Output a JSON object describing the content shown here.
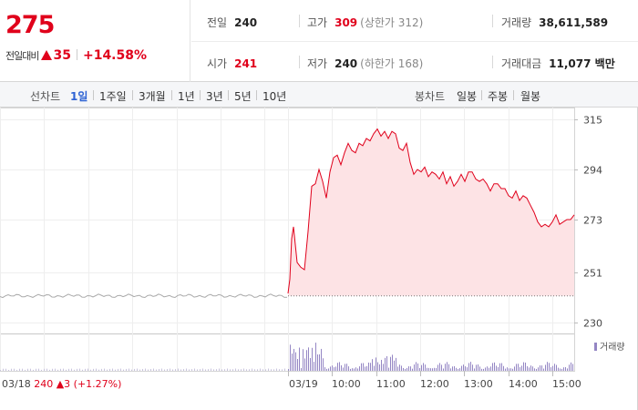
{
  "quote": {
    "price": "275",
    "change_label": "전일대비",
    "change_value": "35",
    "change_pct": "+14.58%"
  },
  "stats": {
    "prev_close_label": "전일",
    "prev_close": "240",
    "high_label": "고가",
    "high": "309",
    "upper_limit": "(상한가 312)",
    "volume_label": "거래량",
    "volume": "38,611,589",
    "open_label": "시가",
    "open": "241",
    "low_label": "저가",
    "low": "240",
    "lower_limit": "(하한가 168)",
    "trade_value_label": "거래대금",
    "trade_value": "11,077 백만"
  },
  "line_tabs": {
    "label": "선차트",
    "options": [
      "1일",
      "1주일",
      "3개월",
      "1년",
      "3년",
      "5년",
      "10년"
    ],
    "selected": "1일"
  },
  "candle_tabs": {
    "label": "봉차트",
    "options": [
      "일봉",
      "주봉",
      "월봉"
    ]
  },
  "colors": {
    "up": "#e0001b",
    "price_fill": "#fde3e5",
    "volume": "#9486c4",
    "prev_line": "#a9a9a9",
    "selected_tab": "#2d62d4"
  },
  "chart_data": {
    "type": "line",
    "y_ticks": [
      315,
      294,
      273,
      251,
      230
    ],
    "ylim": [
      226,
      320
    ],
    "x_ticks": [
      "03/19",
      "10:00",
      "11:00",
      "12:00",
      "13:00",
      "14:00",
      "15:00"
    ],
    "prev_day": {
      "date": "03/18",
      "close": "240",
      "change": "3",
      "change_pct": "(+1.27%)",
      "level": 241
    },
    "today": [
      [
        0,
        242
      ],
      [
        2,
        248
      ],
      [
        4,
        265
      ],
      [
        6,
        270
      ],
      [
        10,
        255
      ],
      [
        14,
        253
      ],
      [
        18,
        252
      ],
      [
        22,
        268
      ],
      [
        26,
        287
      ],
      [
        30,
        288
      ],
      [
        34,
        294
      ],
      [
        38,
        289
      ],
      [
        42,
        282
      ],
      [
        46,
        293
      ],
      [
        50,
        299
      ],
      [
        54,
        300
      ],
      [
        58,
        296
      ],
      [
        62,
        301
      ],
      [
        66,
        305
      ],
      [
        70,
        302
      ],
      [
        74,
        301
      ],
      [
        78,
        305
      ],
      [
        82,
        304
      ],
      [
        86,
        307
      ],
      [
        90,
        306
      ],
      [
        94,
        309
      ],
      [
        98,
        311
      ],
      [
        102,
        308
      ],
      [
        106,
        310
      ],
      [
        110,
        307
      ],
      [
        114,
        310
      ],
      [
        118,
        309
      ],
      [
        122,
        303
      ],
      [
        126,
        302
      ],
      [
        130,
        305
      ],
      [
        134,
        297
      ],
      [
        138,
        292
      ],
      [
        142,
        294
      ],
      [
        146,
        293
      ],
      [
        150,
        295
      ],
      [
        154,
        291
      ],
      [
        158,
        293
      ],
      [
        162,
        292
      ],
      [
        166,
        290
      ],
      [
        170,
        293
      ],
      [
        174,
        288
      ],
      [
        178,
        291
      ],
      [
        182,
        287
      ],
      [
        186,
        289
      ],
      [
        190,
        292
      ],
      [
        194,
        289
      ],
      [
        198,
        293
      ],
      [
        202,
        293
      ],
      [
        206,
        290
      ],
      [
        210,
        289
      ],
      [
        214,
        290
      ],
      [
        218,
        288
      ],
      [
        222,
        285
      ],
      [
        226,
        288
      ],
      [
        230,
        288
      ],
      [
        234,
        286
      ],
      [
        238,
        286
      ],
      [
        242,
        283
      ],
      [
        246,
        282
      ],
      [
        250,
        285
      ],
      [
        254,
        281
      ],
      [
        258,
        283
      ],
      [
        262,
        282
      ],
      [
        266,
        279
      ],
      [
        270,
        276
      ],
      [
        274,
        272
      ],
      [
        278,
        270
      ],
      [
        282,
        271
      ],
      [
        286,
        270
      ],
      [
        290,
        272
      ],
      [
        294,
        275
      ],
      [
        298,
        271
      ],
      [
        302,
        272
      ],
      [
        306,
        273
      ],
      [
        310,
        273
      ],
      [
        314,
        275
      ]
    ],
    "volume_legend": "거래량"
  }
}
